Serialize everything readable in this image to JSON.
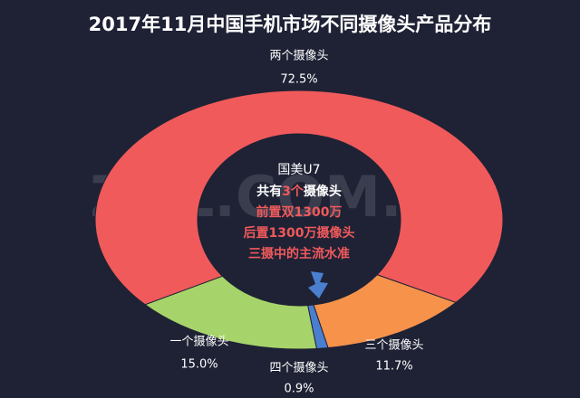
{
  "chart_data": {
    "type": "donut",
    "title": "2017年11月中国手机市场不同摄像头产品分布",
    "categories": [
      "两个摄像头",
      "三个摄像头",
      "四个摄像头",
      "一个摄像头"
    ],
    "values": [
      72.5,
      11.7,
      0.9,
      15.0
    ],
    "value_labels": [
      "72.5%",
      "11.7%",
      "0.9%",
      "15.0%"
    ],
    "colors": [
      "#f05a5b",
      "#f7924b",
      "#4a7fd0",
      "#a7d46a"
    ],
    "annotations": [
      "国美U7",
      "共有",
      "3个",
      "摄像头",
      "前置双1300万",
      "后置1300万摄像头",
      "三摄中的主流水准"
    ],
    "watermark": "ZOL.COM.CN"
  }
}
